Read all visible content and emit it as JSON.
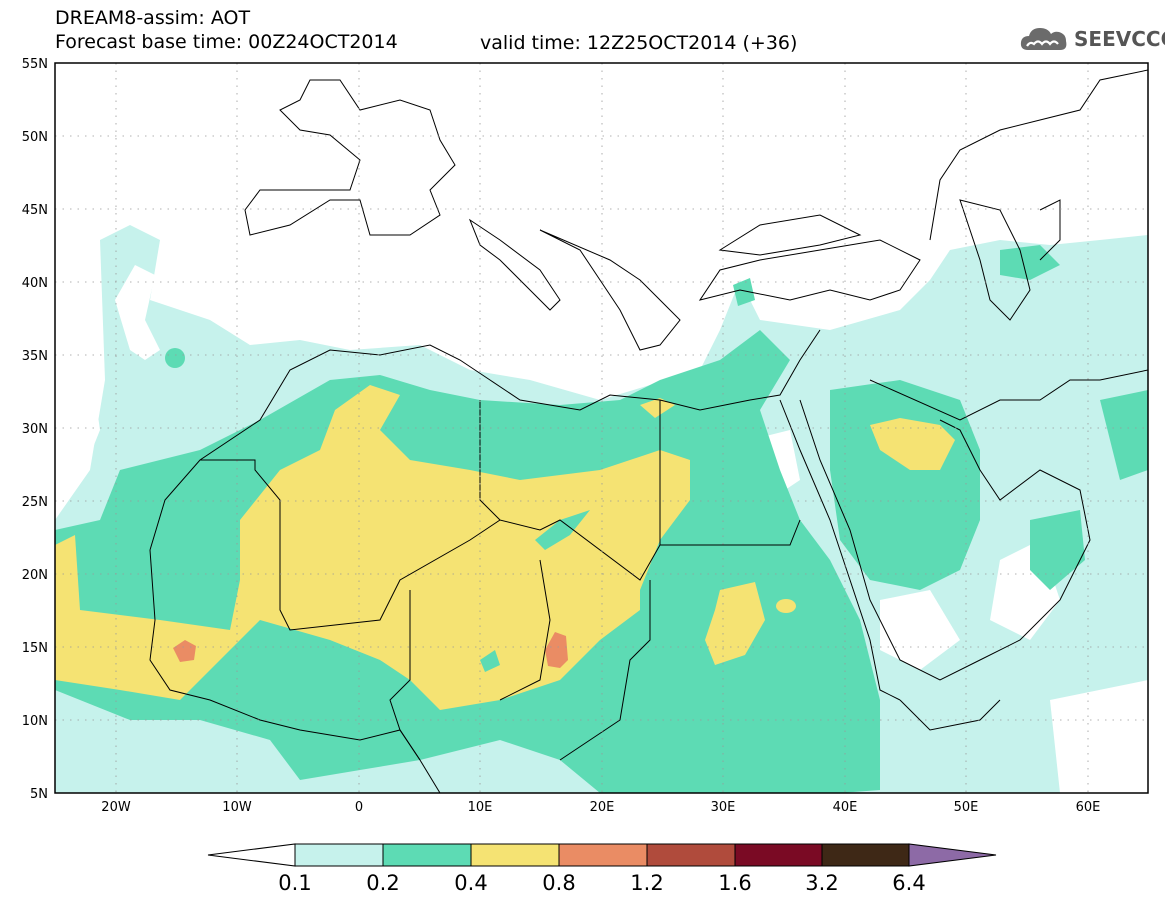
{
  "header": {
    "line1": "DREAM8-assim: AOT",
    "line2": "Forecast base time: 00Z24OCT2014",
    "valid": "valid time: 12Z25OCT2014 (+36)"
  },
  "logo": {
    "text": "SEEVCCC",
    "icon": "cloud-icon"
  },
  "map": {
    "lat_labels": [
      "55N",
      "50N",
      "45N",
      "40N",
      "35N",
      "30N",
      "25N",
      "20N",
      "15N",
      "10N",
      "5N"
    ],
    "lon_labels": [
      "20W",
      "10W",
      "0",
      "10E",
      "20E",
      "30E",
      "40E",
      "50E",
      "60E"
    ],
    "lon_range": [
      -25,
      65
    ],
    "lat_range": [
      5,
      55
    ],
    "grid": "dotted"
  },
  "colorbar": {
    "labels": [
      "0.1",
      "0.2",
      "0.4",
      "0.8",
      "1.2",
      "1.6",
      "3.2",
      "6.4"
    ],
    "colors": [
      "#ffffff",
      "#c6f2ec",
      "#5ddbb4",
      "#f5e373",
      "#ea8c64",
      "#b04b3c",
      "#7a0a24",
      "#3e2816",
      "#8d6aa6"
    ]
  }
}
